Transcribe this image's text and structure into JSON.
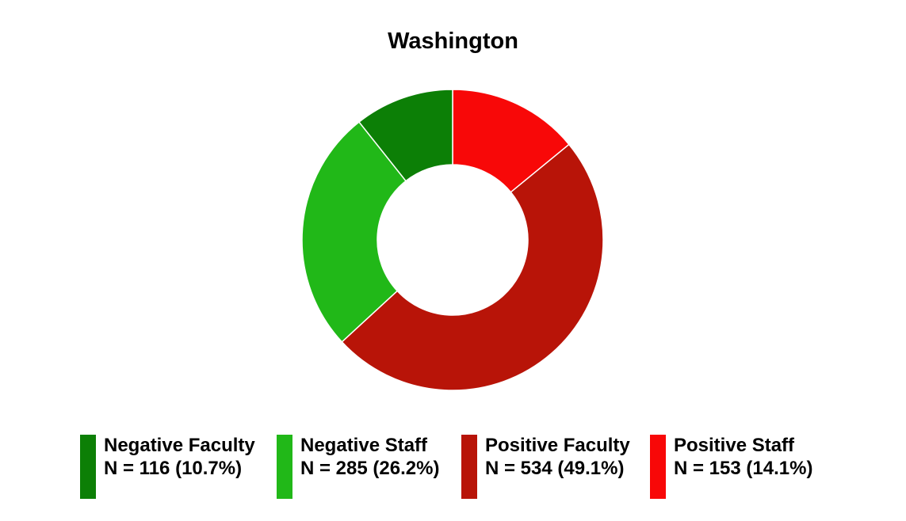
{
  "chart_data": {
    "type": "pie",
    "variant": "donut",
    "title": "Washington",
    "slices": [
      {
        "label": "Negative Faculty",
        "value": 116,
        "percent": 10.7,
        "legend_value": "N = 116 (10.7%)",
        "color": "#0c7f06"
      },
      {
        "label": "Negative Staff",
        "value": 285,
        "percent": 26.2,
        "legend_value": "N = 285 (26.2%)",
        "color": "#21b818"
      },
      {
        "label": "Positive Faculty",
        "value": 534,
        "percent": 49.1,
        "legend_value": "N = 534 (49.1%)",
        "color": "#b81408"
      },
      {
        "label": "Positive Staff",
        "value": 153,
        "percent": 14.1,
        "legend_value": "N = 153 (14.1%)",
        "color": "#f80808"
      }
    ],
    "draw_order": [
      "Positive Staff",
      "Positive Faculty",
      "Negative Staff",
      "Negative Faculty"
    ],
    "start_angle": "top",
    "direction": "clockwise",
    "legend_position": "bottom"
  }
}
